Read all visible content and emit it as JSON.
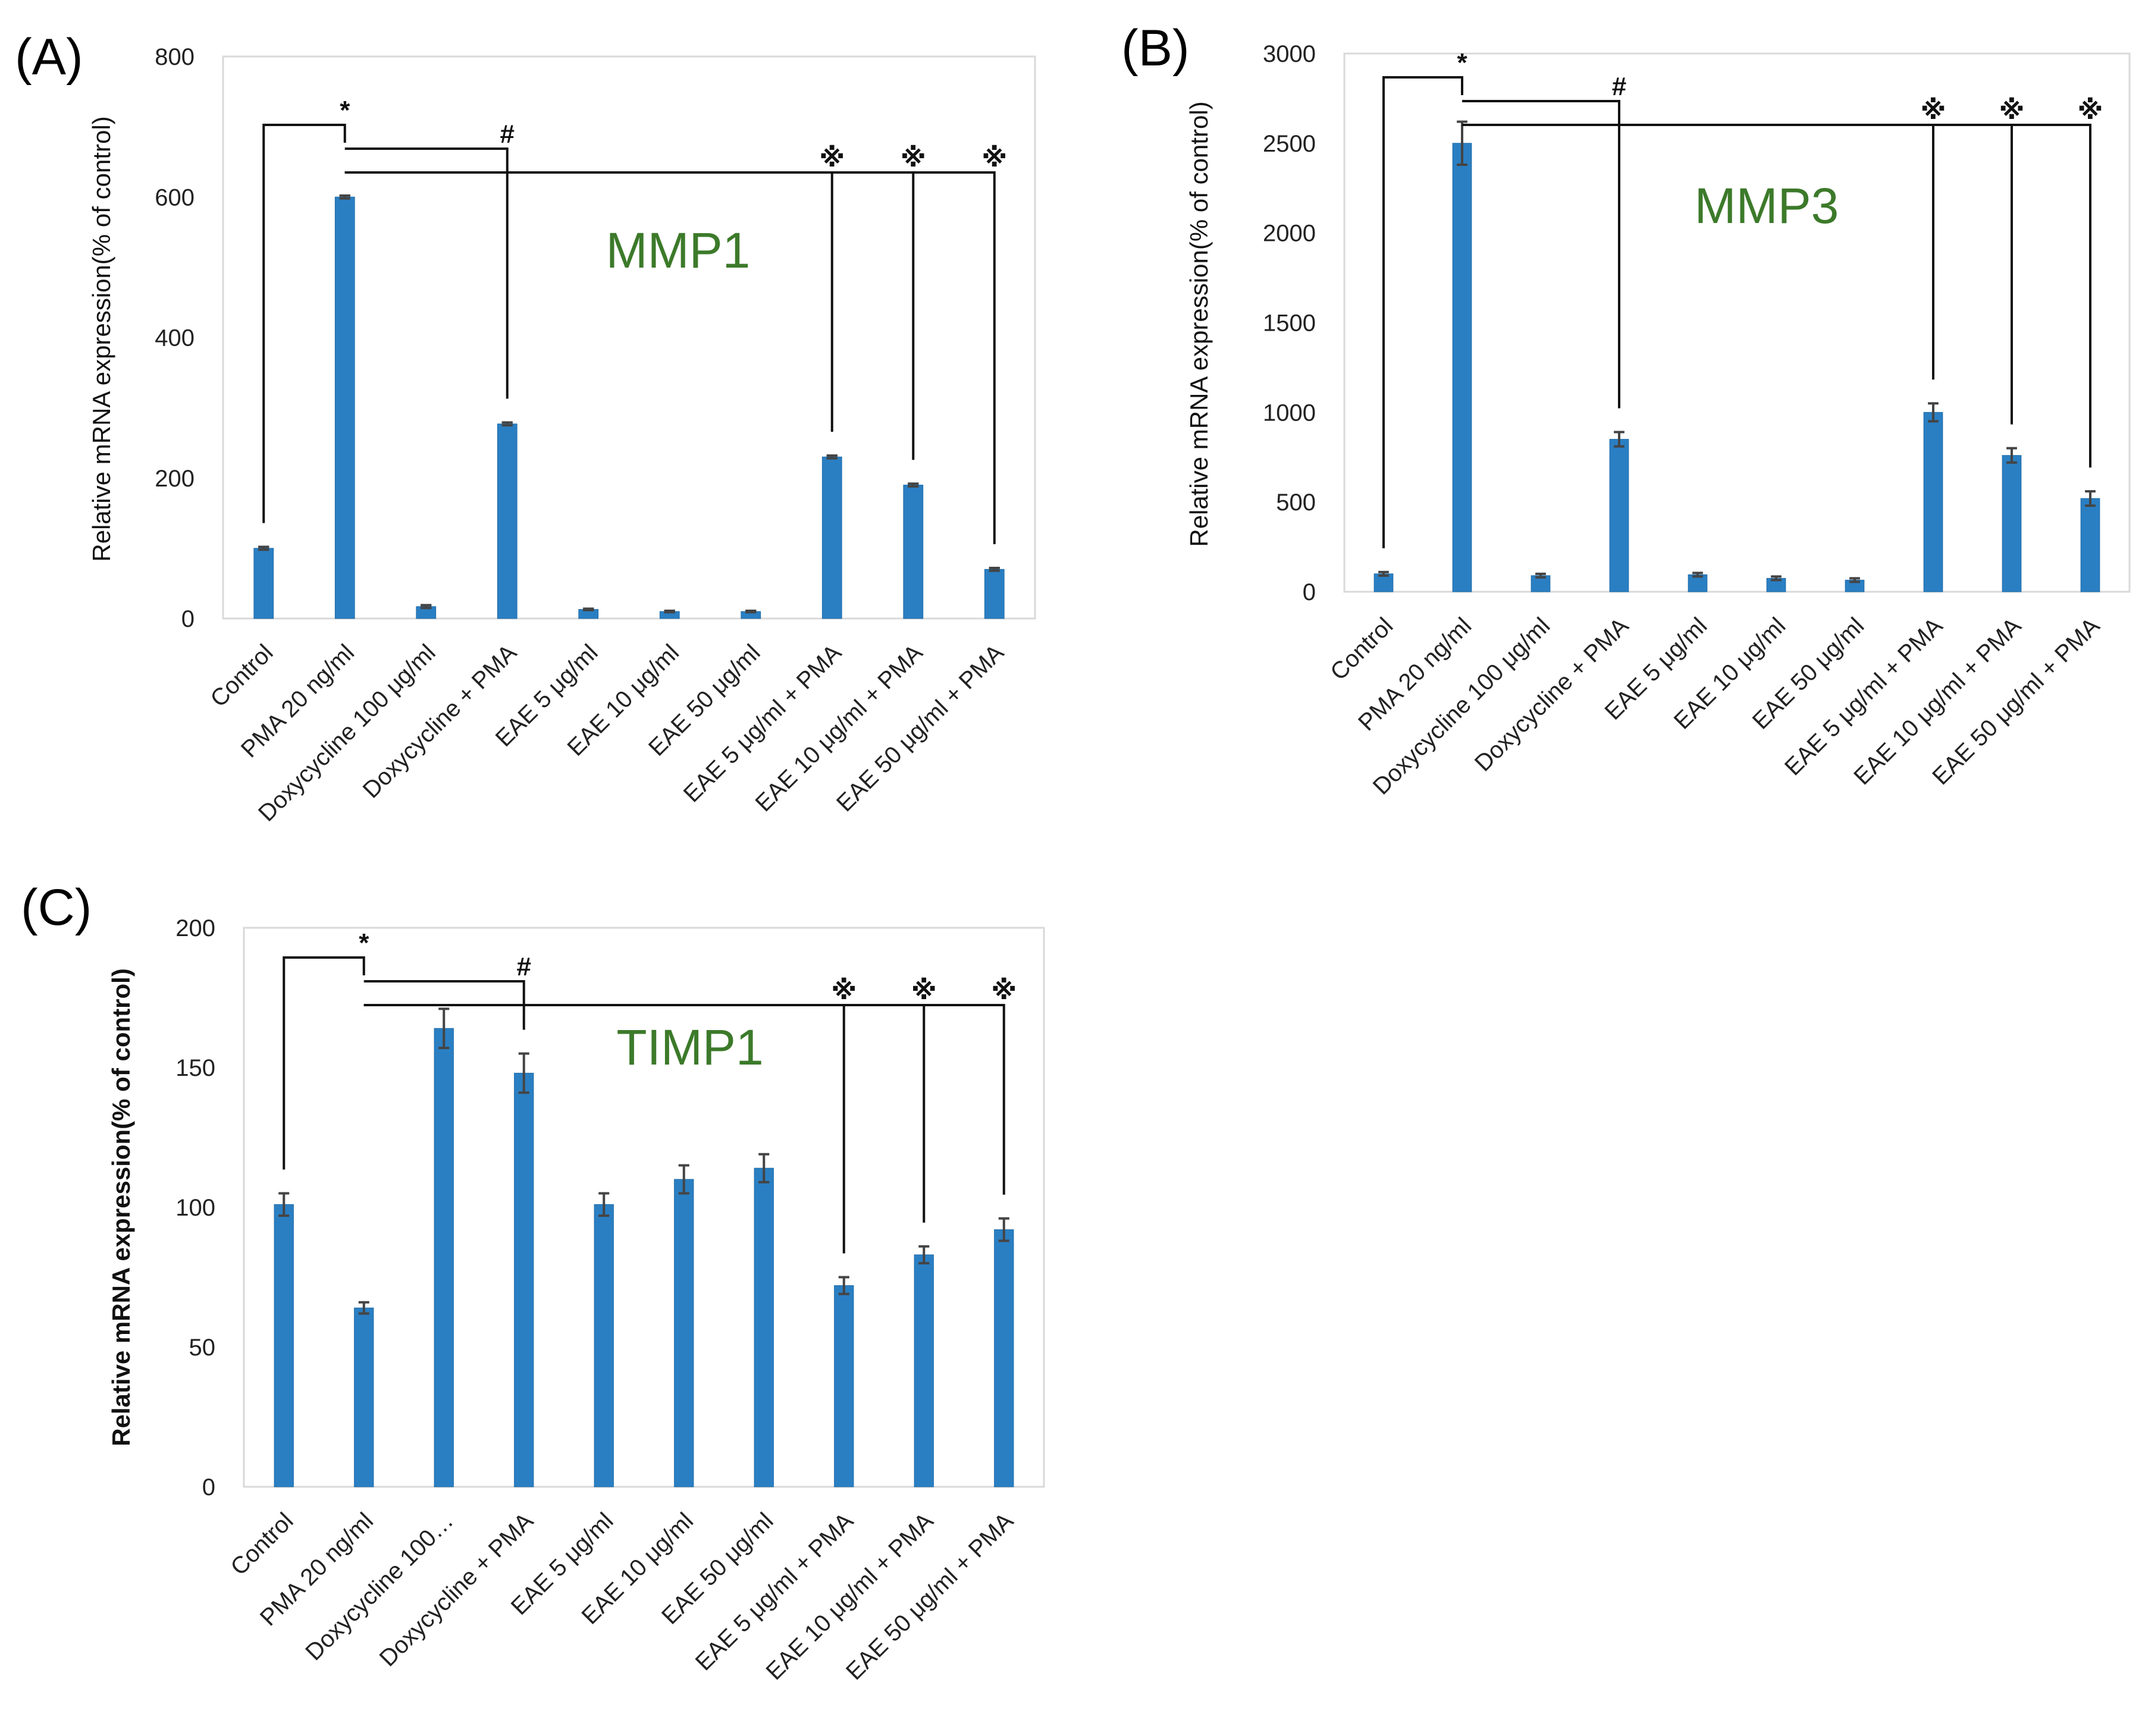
{
  "chart_data": [
    {
      "type": "bar",
      "panel": "(A)",
      "gene": "MMP1",
      "ylabel": "Relative mRNA expression(% of control)",
      "xlabel": "",
      "ylim": [
        0,
        800
      ],
      "yticks": [
        0,
        200,
        400,
        600,
        800
      ],
      "grid": false,
      "legend": "none",
      "categories": [
        "Control",
        "PMA 20 ng/ml",
        "Doxycycline 100 μg/ml",
        "Doxycycline + PMA",
        "EAE 5 μg/ml",
        "EAE 10 μg/ml",
        "EAE 50 μg/ml",
        "EAE 5 μg/ml + PMA",
        "EAE 10 μg/ml + PMA",
        "EAE 50 μg/ml + PMA"
      ],
      "values": [
        100,
        600,
        17,
        277,
        13,
        10,
        10,
        230,
        190,
        70
      ],
      "errors": [
        2,
        2,
        2,
        2,
        1,
        1,
        1,
        2,
        2,
        2
      ],
      "significance": [
        {
          "symbol": "*",
          "from": 0,
          "to": 1
        },
        {
          "symbol": "#",
          "from": 1,
          "to": 3
        },
        {
          "symbol": "※",
          "from": 1,
          "to": 7
        },
        {
          "symbol": "※",
          "from": 1,
          "to": 8
        },
        {
          "symbol": "※",
          "from": 1,
          "to": 9
        }
      ]
    },
    {
      "type": "bar",
      "panel": "(B)",
      "gene": "MMP3",
      "ylabel": "Relative mRNA expression(% of control)",
      "xlabel": "",
      "ylim": [
        0,
        3000
      ],
      "yticks": [
        0,
        500,
        1000,
        1500,
        2000,
        2500,
        3000
      ],
      "grid": false,
      "legend": "none",
      "categories": [
        "Control",
        "PMA 20 ng/ml",
        "Doxycycline 100 μg/ml",
        "Doxycycline + PMA",
        "EAE 5 μg/ml",
        "EAE 10 μg/ml",
        "EAE 50 μg/ml",
        "EAE 5 μg/ml + PMA",
        "EAE 10 μg/ml + PMA",
        "EAE 50 μg/ml + PMA"
      ],
      "values": [
        100,
        2500,
        90,
        850,
        95,
        75,
        65,
        1000,
        760,
        520
      ],
      "errors": [
        10,
        120,
        10,
        40,
        10,
        10,
        10,
        50,
        40,
        40
      ],
      "significance": [
        {
          "symbol": "*",
          "from": 0,
          "to": 1
        },
        {
          "symbol": "#",
          "from": 1,
          "to": 3
        },
        {
          "symbol": "※",
          "from": 1,
          "to": 7
        },
        {
          "symbol": "※",
          "from": 1,
          "to": 8
        },
        {
          "symbol": "※",
          "from": 1,
          "to": 9
        }
      ]
    },
    {
      "type": "bar",
      "panel": "(C)",
      "gene": "TIMP1",
      "ylabel": "Relative mRNA expression(% of control)",
      "xlabel": "",
      "ylim": [
        0,
        200
      ],
      "yticks": [
        0,
        50,
        100,
        150,
        200
      ],
      "grid": false,
      "legend": "none",
      "categories": [
        "Control",
        "PMA 20 ng/ml",
        "Doxycycline 100…",
        "Doxycycline + PMA",
        "EAE 5 μg/ml",
        "EAE 10 μg/ml",
        "EAE 50 μg/ml",
        "EAE 5 μg/ml + PMA",
        "EAE 10 μg/ml + PMA",
        "EAE 50 μg/ml + PMA"
      ],
      "values": [
        101,
        64,
        164,
        148,
        101,
        110,
        114,
        72,
        83,
        92
      ],
      "errors": [
        4,
        2,
        7,
        7,
        4,
        5,
        5,
        3,
        3,
        4
      ],
      "significance": [
        {
          "symbol": "*",
          "from": 0,
          "to": 1
        },
        {
          "symbol": "#",
          "from": 1,
          "to": 3
        },
        {
          "symbol": "※",
          "from": 1,
          "to": 7
        },
        {
          "symbol": "※",
          "from": 1,
          "to": 8
        },
        {
          "symbol": "※",
          "from": 1,
          "to": 9
        }
      ]
    }
  ],
  "colors": {
    "bar": "#2a7fc3",
    "bar_edge": "#1f6aa6",
    "error_bar": "#444444",
    "gene_title": "#3c7a2a",
    "plot_border": "#d9d9d9",
    "bracket": "#111111"
  }
}
